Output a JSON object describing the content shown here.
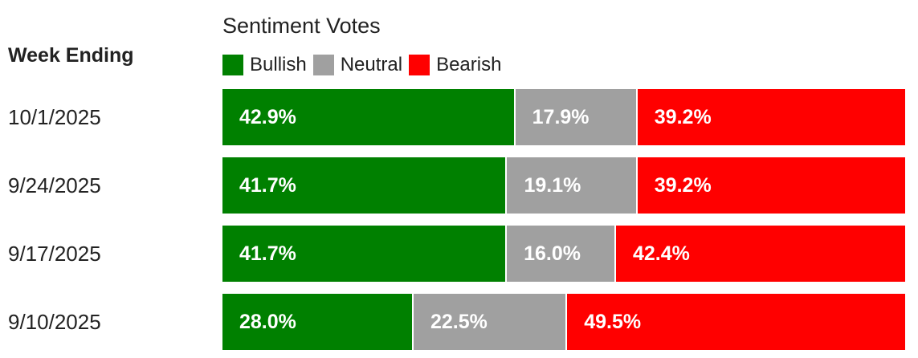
{
  "chart_data": {
    "type": "bar",
    "orientation": "horizontal",
    "stacked": true,
    "title": "Sentiment Votes",
    "row_header": "Week Ending",
    "categories": [
      "10/1/2025",
      "9/24/2025",
      "9/17/2025",
      "9/10/2025"
    ],
    "series": [
      {
        "name": "Bullish",
        "color": "#008000",
        "values": [
          42.9,
          41.7,
          41.7,
          28.0
        ],
        "labels": [
          "42.9%",
          "41.7%",
          "41.7%",
          "28.0%"
        ]
      },
      {
        "name": "Neutral",
        "color": "#a0a0a0",
        "values": [
          17.9,
          19.1,
          16.0,
          22.5
        ],
        "labels": [
          "17.9%",
          "19.1%",
          "16.0%",
          "22.5%"
        ]
      },
      {
        "name": "Bearish",
        "color": "#ff0000",
        "values": [
          39.2,
          39.2,
          42.4,
          49.5
        ],
        "labels": [
          "39.2%",
          "39.2%",
          "42.4%",
          "49.5%"
        ]
      }
    ],
    "xlim": [
      0,
      100
    ],
    "legend_position": "top"
  }
}
